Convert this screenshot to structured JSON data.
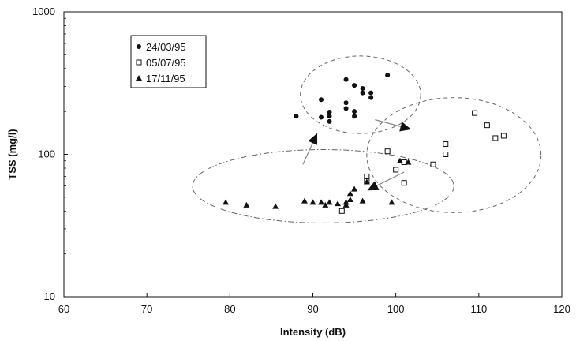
{
  "chart_data": {
    "type": "scatter",
    "xlabel": "Intensity (dB)",
    "ylabel": "TSS (mg/l)",
    "xlim": [
      60,
      120
    ],
    "ylim": [
      10,
      1000
    ],
    "yscale": "log",
    "grid": false,
    "legend_position": "top-left",
    "x_ticks": [
      "60",
      "70",
      "80",
      "90",
      "100",
      "110",
      "120"
    ],
    "y_ticks": [
      "10",
      "100",
      "1000"
    ],
    "series": [
      {
        "name": "24/03/95",
        "marker": "filled-circle",
        "points": [
          [
            88,
            185
          ],
          [
            91,
            182
          ],
          [
            91,
            242
          ],
          [
            92,
            170
          ],
          [
            92,
            185
          ],
          [
            92,
            198
          ],
          [
            94,
            210
          ],
          [
            94,
            230
          ],
          [
            94,
            335
          ],
          [
            95,
            185
          ],
          [
            95,
            200
          ],
          [
            95,
            305
          ],
          [
            96,
            270
          ],
          [
            96,
            290
          ],
          [
            97,
            250
          ],
          [
            97,
            270
          ],
          [
            99,
            360
          ]
        ]
      },
      {
        "name": "05/07/95",
        "marker": "open-square",
        "points": [
          [
            93.5,
            40
          ],
          [
            96.5,
            65
          ],
          [
            96.5,
            70
          ],
          [
            99,
            105
          ],
          [
            100,
            78
          ],
          [
            101,
            63
          ],
          [
            101,
            88
          ],
          [
            104.5,
            85
          ],
          [
            106,
            100
          ],
          [
            106,
            118
          ],
          [
            109.5,
            195
          ],
          [
            111,
            160
          ],
          [
            112,
            130
          ],
          [
            113,
            135
          ]
        ]
      },
      {
        "name": "17/11/95",
        "marker": "filled-triangle",
        "points": [
          [
            79.5,
            46
          ],
          [
            82,
            44
          ],
          [
            85.5,
            43
          ],
          [
            89,
            47
          ],
          [
            90,
            46
          ],
          [
            91,
            46
          ],
          [
            91.5,
            44
          ],
          [
            92,
            46
          ],
          [
            93,
            45
          ],
          [
            94,
            44
          ],
          [
            94,
            46
          ],
          [
            94.5,
            48
          ],
          [
            94.5,
            53
          ],
          [
            95,
            57
          ],
          [
            96,
            47
          ],
          [
            96.5,
            64
          ],
          [
            99.5,
            46
          ],
          [
            100.5,
            90
          ],
          [
            101.5,
            88
          ]
        ]
      }
    ],
    "cluster_ellipses": [
      {
        "cx": 95.8,
        "cy": 260,
        "x_min": 88.5,
        "x_max": 103,
        "y_min": 140,
        "y_max": 490,
        "stroke": "dash"
      },
      {
        "cx": 105.5,
        "cy": 100,
        "x_min": 96.5,
        "x_max": 117.5,
        "y_min": 39,
        "y_max": 250,
        "stroke": "dash"
      },
      {
        "cx": 91.5,
        "cy": 60,
        "x_min": 75.5,
        "x_max": 107,
        "y_min": 33,
        "y_max": 108,
        "stroke": "dash-dot"
      }
    ],
    "arrows": [
      {
        "from": [
          88.8,
          85
        ],
        "to": [
          90.5,
          140
        ],
        "color": "#888888"
      },
      {
        "from": [
          97.5,
          175
        ],
        "to": [
          101.8,
          150
        ],
        "color": "#888888"
      },
      {
        "from": [
          101,
          75
        ],
        "to": [
          96.6,
          56
        ],
        "color": "#888888"
      }
    ]
  },
  "colors": {
    "marker": "#111111",
    "axis": "#111111",
    "ellipse": "#666666",
    "arrow": "#888888"
  }
}
